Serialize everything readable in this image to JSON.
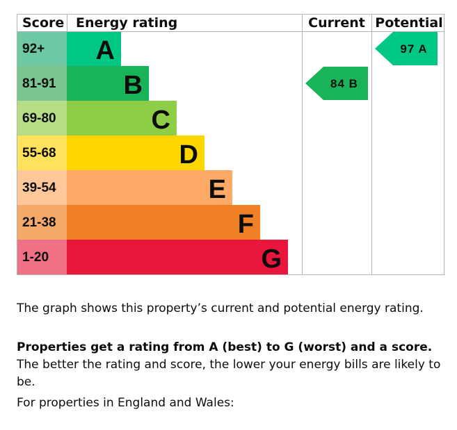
{
  "chart_data": {
    "type": "bar",
    "headers": {
      "score": "Score",
      "rating": "Energy rating",
      "current": "Current",
      "potential": "Potential"
    },
    "bands": [
      {
        "letter": "A",
        "range": "92+",
        "color": "#00c781",
        "score_color": "#6ec8a4"
      },
      {
        "letter": "B",
        "range": "81-91",
        "color": "#19b459",
        "score_color": "#79c48f"
      },
      {
        "letter": "C",
        "range": "69-80",
        "color": "#8dce46",
        "score_color": "#b4dd86"
      },
      {
        "letter": "D",
        "range": "55-68",
        "color": "#ffd500",
        "score_color": "#ffe25b"
      },
      {
        "letter": "E",
        "range": "39-54",
        "color": "#fcaa65",
        "score_color": "#fdc79a"
      },
      {
        "letter": "F",
        "range": "21-38",
        "color": "#ef8023",
        "score_color": "#f4a86a"
      },
      {
        "letter": "G",
        "range": "1-20",
        "color": "#e9153b",
        "score_color": "#f07186"
      }
    ],
    "current": {
      "score": 84,
      "band": "B",
      "label": "84 B",
      "color": "#19b459"
    },
    "potential": {
      "score": 97,
      "band": "A",
      "label": "97 A",
      "color": "#00c781"
    }
  },
  "text": {
    "p1": "The graph shows this property’s current and potential energy rating.",
    "p2_bold": "Properties get a rating from A (best) to G (worst) and a score.",
    "p2_rest": " The better the rating and score, the lower your energy bills are likely to be.",
    "p3": "For properties in England and Wales:"
  }
}
